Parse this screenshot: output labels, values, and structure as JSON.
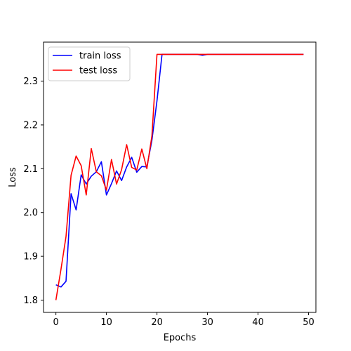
{
  "chart_data": {
    "type": "line",
    "title": "",
    "xlabel": "Epochs",
    "ylabel": "Loss",
    "xlim": [
      -2.45,
      51.45
    ],
    "ylim": [
      1.772,
      2.389
    ],
    "xticks": [
      0,
      10,
      20,
      30,
      40,
      50
    ],
    "yticks": [
      1.8,
      1.9,
      2.0,
      2.1,
      2.2,
      2.3
    ],
    "ytick_labels": [
      "1.8",
      "1.9",
      "2.0",
      "2.1",
      "2.2",
      "2.3"
    ],
    "grid": false,
    "legend_position": "top-left",
    "x": [
      0,
      1,
      2,
      3,
      4,
      5,
      6,
      7,
      8,
      9,
      10,
      11,
      12,
      13,
      14,
      15,
      16,
      17,
      18,
      19,
      20,
      21,
      22,
      23,
      24,
      25,
      26,
      27,
      28,
      29,
      30,
      31,
      32,
      33,
      34,
      35,
      36,
      37,
      38,
      39,
      40,
      41,
      42,
      43,
      44,
      45,
      46,
      47,
      48,
      49
    ],
    "series": [
      {
        "name": "train loss",
        "color": "#0000ff",
        "values": [
          1.835,
          1.83,
          1.843,
          2.043,
          2.006,
          2.086,
          2.065,
          2.083,
          2.093,
          2.116,
          2.04,
          2.066,
          2.095,
          2.073,
          2.104,
          2.126,
          2.092,
          2.105,
          2.104,
          2.165,
          2.255,
          2.361,
          2.361,
          2.361,
          2.361,
          2.361,
          2.361,
          2.361,
          2.361,
          2.359,
          2.361,
          2.361,
          2.361,
          2.361,
          2.361,
          2.361,
          2.361,
          2.361,
          2.361,
          2.361,
          2.361,
          2.361,
          2.361,
          2.361,
          2.361,
          2.361,
          2.361,
          2.361,
          2.361,
          2.361
        ]
      },
      {
        "name": "test loss",
        "color": "#ff0000",
        "values": [
          1.8,
          1.87,
          1.945,
          2.085,
          2.129,
          2.107,
          2.04,
          2.146,
          2.093,
          2.084,
          2.051,
          2.121,
          2.065,
          2.098,
          2.155,
          2.103,
          2.097,
          2.145,
          2.1,
          2.175,
          2.361,
          2.361,
          2.361,
          2.361,
          2.361,
          2.361,
          2.361,
          2.361,
          2.361,
          2.361,
          2.361,
          2.361,
          2.361,
          2.361,
          2.361,
          2.361,
          2.361,
          2.361,
          2.361,
          2.361,
          2.361,
          2.361,
          2.361,
          2.361,
          2.361,
          2.361,
          2.361,
          2.361,
          2.361,
          2.361
        ]
      }
    ]
  }
}
